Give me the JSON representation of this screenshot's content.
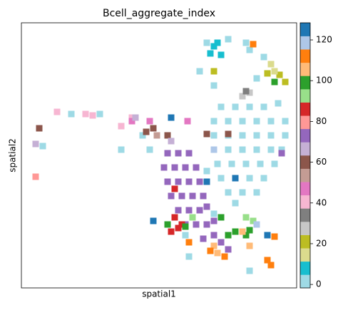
{
  "chart_data": {
    "type": "scatter",
    "title": "Bcell_aggregate_index",
    "xlabel": "spatial1",
    "ylabel": "spatial2",
    "xlim": [
      30,
      416
    ],
    "ylim": [
      404,
      32
    ],
    "marker_size": 9,
    "x": [
      310,
      330,
      350,
      370,
      390,
      300,
      320,
      340,
      360,
      380,
      400,
      300,
      320,
      340,
      360,
      380,
      400,
      300,
      320,
      340,
      360,
      380,
      395,
      305,
      325,
      345,
      365,
      385,
      310,
      330,
      350,
      370,
      320,
      340,
      360,
      330,
      290,
      320,
      350,
      370,
      345,
      280,
      300,
      360,
      200,
      210,
      170,
      100,
      60,
      140,
      215,
      260,
      265,
      350,
      300,
      290,
      300,
      310,
      295,
      305,
      400,
      392,
      375,
      300,
      380,
      385,
      350,
      340,
      345,
      80,
      130,
      185,
      170,
      120,
      210,
      185,
      263,
      220,
      205,
      235,
      290,
      320,
      55,
      215,
      235,
      250,
      265,
      230,
      245,
      260,
      275,
      235,
      250,
      265,
      280,
      240,
      255,
      270,
      285,
      250,
      265,
      280,
      290,
      260,
      275,
      290,
      300,
      285,
      310,
      320,
      250,
      300,
      395,
      50,
      190,
      240,
      50,
      240,
      245,
      250,
      240,
      255,
      245,
      270,
      345,
      355,
      235,
      260,
      330,
      345,
      310,
      385,
      350,
      320,
      350,
      340,
      300,
      305,
      295,
      375,
      380,
      265,
      315,
      385,
      355,
      300,
      360,
      290,
      330,
      215,
      240,
      375
    ],
    "y": [
      150,
      150,
      150,
      150,
      145,
      170,
      170,
      170,
      170,
      170,
      170,
      190,
      190,
      190,
      190,
      190,
      190,
      210,
      210,
      210,
      210,
      210,
      210,
      230,
      230,
      230,
      230,
      230,
      250,
      250,
      250,
      250,
      270,
      270,
      270,
      285,
      60,
      55,
      70,
      80,
      60,
      100,
      120,
      110,
      190,
      210,
      210,
      160,
      205,
      160,
      310,
      330,
      360,
      380,
      300,
      240,
      65,
      77,
      75,
      60,
      115,
      105,
      103,
      100,
      90,
      100,
      130,
      135,
      128,
      157,
      162,
      165,
      177,
      160,
      170,
      170,
      170,
      190,
      185,
      190,
      188,
      188,
      180,
      180,
      215,
      215,
      215,
      235,
      235,
      235,
      235,
      255,
      255,
      255,
      255,
      275,
      275,
      275,
      275,
      295,
      295,
      295,
      290,
      315,
      315,
      315,
      330,
      335,
      340,
      350,
      320,
      310,
      215,
      202,
      165,
      198,
      248,
      165,
      305,
      320,
      325,
      315,
      265,
      305,
      305,
      310,
      315,
      318,
      325,
      330,
      305,
      115,
      323,
      330,
      345,
      325,
      345,
      355,
      352,
      365,
      372,
      340,
      360,
      332,
      62,
      210,
      315,
      255,
      250,
      310,
      165,
      330
    ],
    "c": [
      2,
      2,
      2,
      2,
      2,
      2,
      2,
      2,
      2,
      2,
      2,
      2,
      2,
      2,
      2,
      2,
      2,
      2,
      2,
      2,
      2,
      2,
      2,
      2,
      2,
      2,
      2,
      2,
      2,
      2,
      2,
      2,
      2,
      2,
      2,
      2,
      2,
      2,
      2,
      2,
      2,
      2,
      2,
      2,
      2,
      2,
      2,
      2,
      2,
      2,
      2,
      2,
      2,
      2,
      2,
      2,
      8,
      8,
      8,
      8,
      21,
      21,
      21,
      21,
      14,
      14,
      27,
      27,
      34,
      40,
      40,
      40,
      40,
      40,
      47,
      47,
      47,
      53,
      60,
      60,
      60,
      60,
      60,
      60,
      73,
      73,
      73,
      73,
      73,
      73,
      73,
      73,
      73,
      73,
      73,
      73,
      73,
      73,
      73,
      73,
      73,
      73,
      73,
      73,
      73,
      73,
      73,
      73,
      73,
      73,
      73,
      73,
      73,
      66,
      66,
      66,
      79,
      79,
      86,
      86,
      86,
      86,
      86,
      92,
      92,
      92,
      99,
      99,
      99,
      99,
      99,
      99,
      99,
      99,
      105,
      105,
      105,
      105,
      112,
      112,
      112,
      112,
      112,
      112,
      112,
      118,
      118,
      125,
      125,
      125,
      125,
      125
    ],
    "colorbar": {
      "clim": [
        -1.7,
        128.4
      ],
      "yticks": [
        0,
        20,
        40,
        60,
        80,
        100,
        120
      ],
      "colors": [
        "#9edae5",
        "#17becf",
        "#dbdb8d",
        "#bcbd22",
        "#c7c7c7",
        "#7f7f7f",
        "#f7b6d2",
        "#e377c2",
        "#c49c94",
        "#8c564b",
        "#c5b0d5",
        "#9467bd",
        "#ff9896",
        "#d62728",
        "#98df8a",
        "#2ca02c",
        "#ffbb78",
        "#ff7f0e",
        "#aec7e8",
        "#1f77b4"
      ]
    }
  }
}
